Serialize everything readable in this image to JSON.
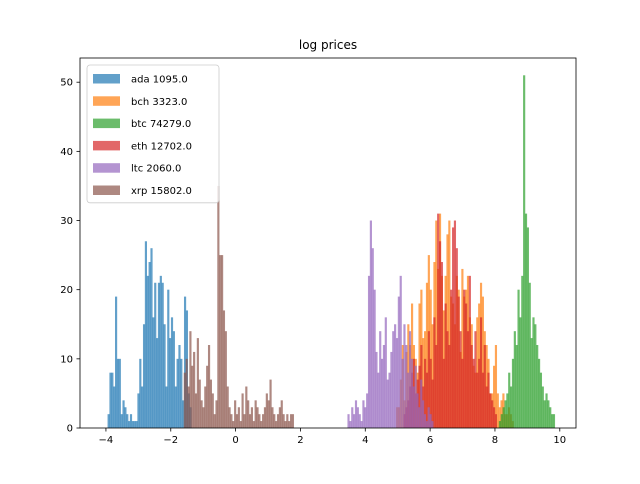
{
  "chart_data": {
    "type": "bar",
    "subtype": "histogram",
    "title": "log prices",
    "xlabel": "",
    "ylabel": "",
    "xlim": [
      -4.8,
      10.5
    ],
    "ylim": [
      0,
      53.5
    ],
    "xticks": [
      -4,
      -2,
      0,
      2,
      4,
      6,
      8,
      10
    ],
    "xtick_labels": [
      "−4",
      "−2",
      "0",
      "2",
      "4",
      "6",
      "8",
      "10"
    ],
    "yticks": [
      0,
      10,
      20,
      30,
      40,
      50
    ],
    "ytick_labels": [
      "0",
      "10",
      "20",
      "30",
      "40",
      "50"
    ],
    "grid": false,
    "legend_position": "top-left",
    "alpha": 0.7,
    "series": [
      {
        "name": "ada 1095.0",
        "color": "#1f77b4",
        "bin_start": -3.95,
        "bin_width": 0.0575,
        "counts": [
          2,
          8,
          8,
          6,
          19,
          10,
          10,
          2,
          4,
          3,
          2,
          1,
          2,
          1,
          1,
          1,
          5,
          10,
          6,
          15,
          27,
          22,
          24,
          26,
          16,
          21,
          13,
          21,
          22,
          21,
          15,
          6,
          20,
          13,
          16,
          14,
          6,
          10,
          12,
          10,
          4,
          19,
          17,
          5,
          3
        ]
      },
      {
        "name": "bch 3323.0",
        "color": "#ff7f0e",
        "bin_start": 4.95,
        "bin_width": 0.0575,
        "counts": [
          3,
          3,
          7,
          12,
          4,
          11,
          15,
          12,
          18,
          12,
          10,
          8,
          18,
          20,
          13,
          14,
          21,
          25,
          20,
          15,
          24,
          30,
          23,
          31,
          22,
          17,
          22,
          28,
          30,
          19,
          18,
          15,
          22,
          20,
          11,
          23,
          19,
          20,
          22,
          16,
          15,
          9,
          8,
          16,
          18,
          21,
          19,
          14,
          12,
          10,
          5,
          5,
          9,
          12,
          5,
          3,
          4,
          5,
          2,
          2,
          3,
          2,
          1
        ]
      },
      {
        "name": "btc 74279.0",
        "color": "#2ca02c",
        "bin_start": 8.12,
        "bin_width": 0.0575,
        "counts": [
          1,
          2,
          3,
          4,
          5,
          8,
          6,
          10,
          14,
          12,
          20,
          16,
          22,
          51,
          31,
          29,
          21,
          13,
          16,
          15,
          12,
          10,
          8,
          6,
          4,
          5,
          4,
          3,
          2,
          2
        ]
      },
      {
        "name": "eth 12702.0",
        "color": "#d62728",
        "bin_start": 5.18,
        "bin_width": 0.0575,
        "counts": [
          2,
          3,
          4,
          6,
          8,
          10,
          5,
          7,
          9,
          12,
          6,
          10,
          8,
          14,
          10,
          7,
          16,
          12,
          31,
          27,
          24,
          10,
          18,
          14,
          12,
          20,
          29,
          30,
          26,
          19,
          14,
          10,
          20,
          18,
          14,
          22,
          12,
          10,
          14,
          8,
          10,
          16,
          8,
          12,
          6,
          8,
          5,
          4,
          3,
          2
        ]
      },
      {
        "name": "ltc 2060.0",
        "color": "#9467bd",
        "bin_start": 3.45,
        "bin_width": 0.0575,
        "counts": [
          2,
          1,
          3,
          2,
          4,
          3,
          2,
          1,
          4,
          3,
          5,
          22,
          30,
          26,
          20,
          11,
          8,
          14,
          10,
          12,
          16,
          7,
          8,
          11,
          14,
          15,
          13,
          19,
          22,
          10,
          15,
          12,
          8,
          14,
          10,
          6,
          9,
          5,
          3,
          7,
          4,
          2,
          1,
          3,
          2,
          1
        ]
      },
      {
        "name": "xrp 15802.0",
        "color": "#8c564b",
        "bin_start": -1.6,
        "bin_width": 0.0575,
        "counts": [
          8,
          10,
          6,
          14,
          9,
          11,
          5,
          13,
          7,
          4,
          3,
          6,
          9,
          12,
          7,
          5,
          2,
          4,
          35,
          25,
          25,
          17,
          14,
          6,
          3,
          2,
          1,
          4,
          2,
          3,
          1,
          5,
          2,
          6,
          4,
          2,
          3,
          1,
          4,
          3,
          2,
          1,
          2,
          3,
          5,
          4,
          7,
          3,
          2,
          1,
          2,
          3,
          4,
          2,
          1,
          2,
          1,
          2,
          2
        ]
      }
    ]
  }
}
